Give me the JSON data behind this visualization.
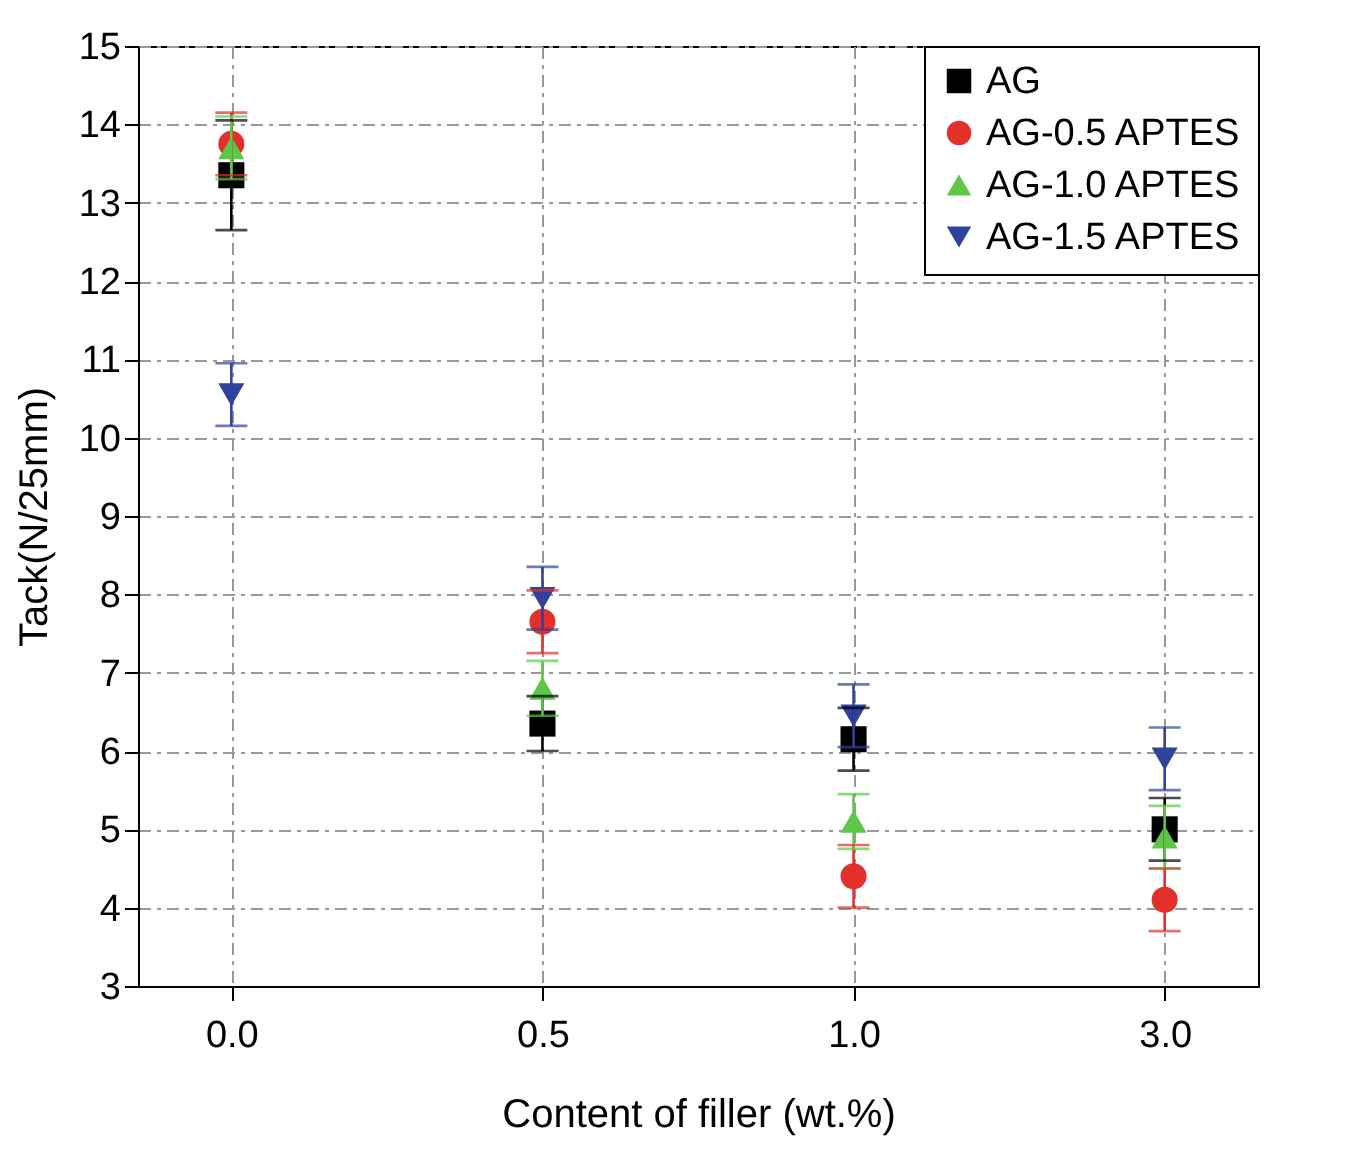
{
  "chart_data": {
    "type": "scatter",
    "xlabel": "Content of filler (wt.%)",
    "ylabel": "Tack(N/25mm)",
    "categories": [
      "0.0",
      "0.5",
      "1.0",
      "3.0"
    ],
    "series": [
      {
        "name": "AG",
        "color": "#000000",
        "marker": "square",
        "values": [
          13.35,
          6.35,
          6.15,
          5.0
        ],
        "errors": [
          0.7,
          0.35,
          0.4,
          0.4
        ]
      },
      {
        "name": "AG-0.5 APTES",
        "color": "#e3302a",
        "marker": "circle",
        "values": [
          13.75,
          7.65,
          4.4,
          4.1
        ],
        "errors": [
          0.4,
          0.4,
          0.4,
          0.4
        ]
      },
      {
        "name": "AG-1.0 APTES",
        "color": "#5ec748",
        "marker": "triangle",
        "values": [
          13.7,
          6.8,
          5.1,
          4.9
        ],
        "errors": [
          0.4,
          0.35,
          0.35,
          0.4
        ]
      },
      {
        "name": "AG-1.5 APTES",
        "color": "#2f429c",
        "marker": "triangle-down",
        "values": [
          10.55,
          7.95,
          6.45,
          5.9
        ],
        "errors": [
          0.4,
          0.4,
          0.4,
          0.4
        ]
      }
    ],
    "ylim": [
      3,
      15
    ],
    "yticks": [
      3,
      4,
      5,
      6,
      7,
      8,
      9,
      10,
      11,
      12,
      13,
      14,
      15
    ],
    "grid": true,
    "legend": "top right"
  }
}
